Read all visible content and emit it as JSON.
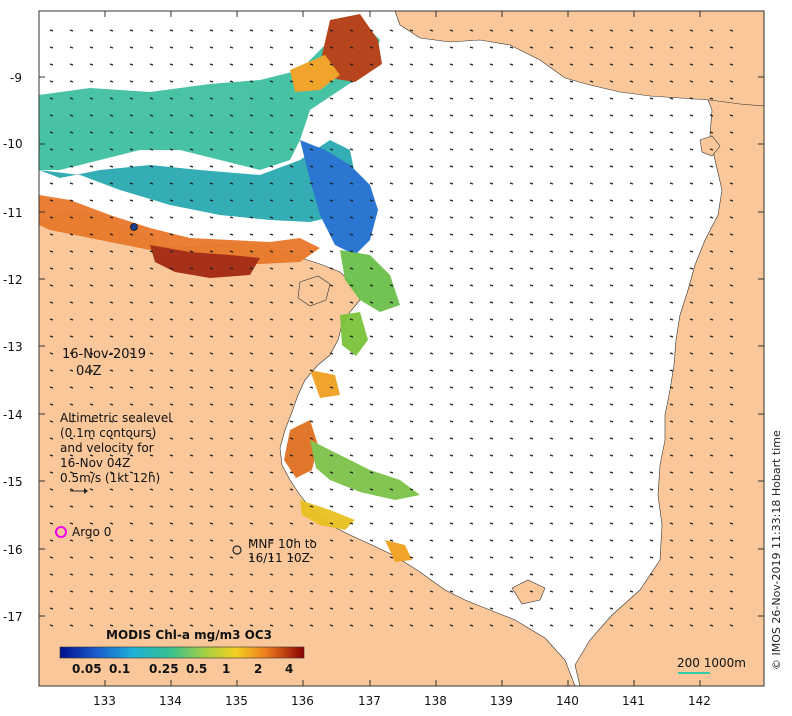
{
  "map": {
    "date_label": "16-Nov-2019",
    "time_label": "04Z",
    "altimetry_lines": [
      "Altimetric sealevel",
      "(0.1m contours)",
      "and velocity for",
      "16-Nov 04Z",
      "0.5m/s (1kt 12h)"
    ],
    "argo_label": "Argo 0",
    "mnf_lines": [
      "MNF 10h to",
      "16/11 10Z"
    ],
    "colorbar_title": "MODIS Chl-a mg/m3 OC3",
    "colorbar_ticks": [
      "0.05",
      "0.1",
      "0.25",
      "0.5",
      "1",
      "2",
      "4"
    ],
    "scale_label": "200  1000m",
    "credit": "© IMOS 26-Nov-2019 11:33:18 Hobart time",
    "lat_labels": [
      "-9",
      "-10",
      "-11",
      "-12",
      "-13",
      "-14",
      "-15",
      "-16",
      "-17"
    ],
    "lon_labels": [
      "133",
      "134",
      "135",
      "136",
      "137",
      "138",
      "139",
      "140",
      "141",
      "142"
    ],
    "colors": {
      "land": "#f9c79a",
      "ocean": "#ffffff",
      "argo": "#ee00ee",
      "scale_line": "#33ccaa",
      "chl_low": "#00108c",
      "chl_high": "#8b0000"
    }
  }
}
